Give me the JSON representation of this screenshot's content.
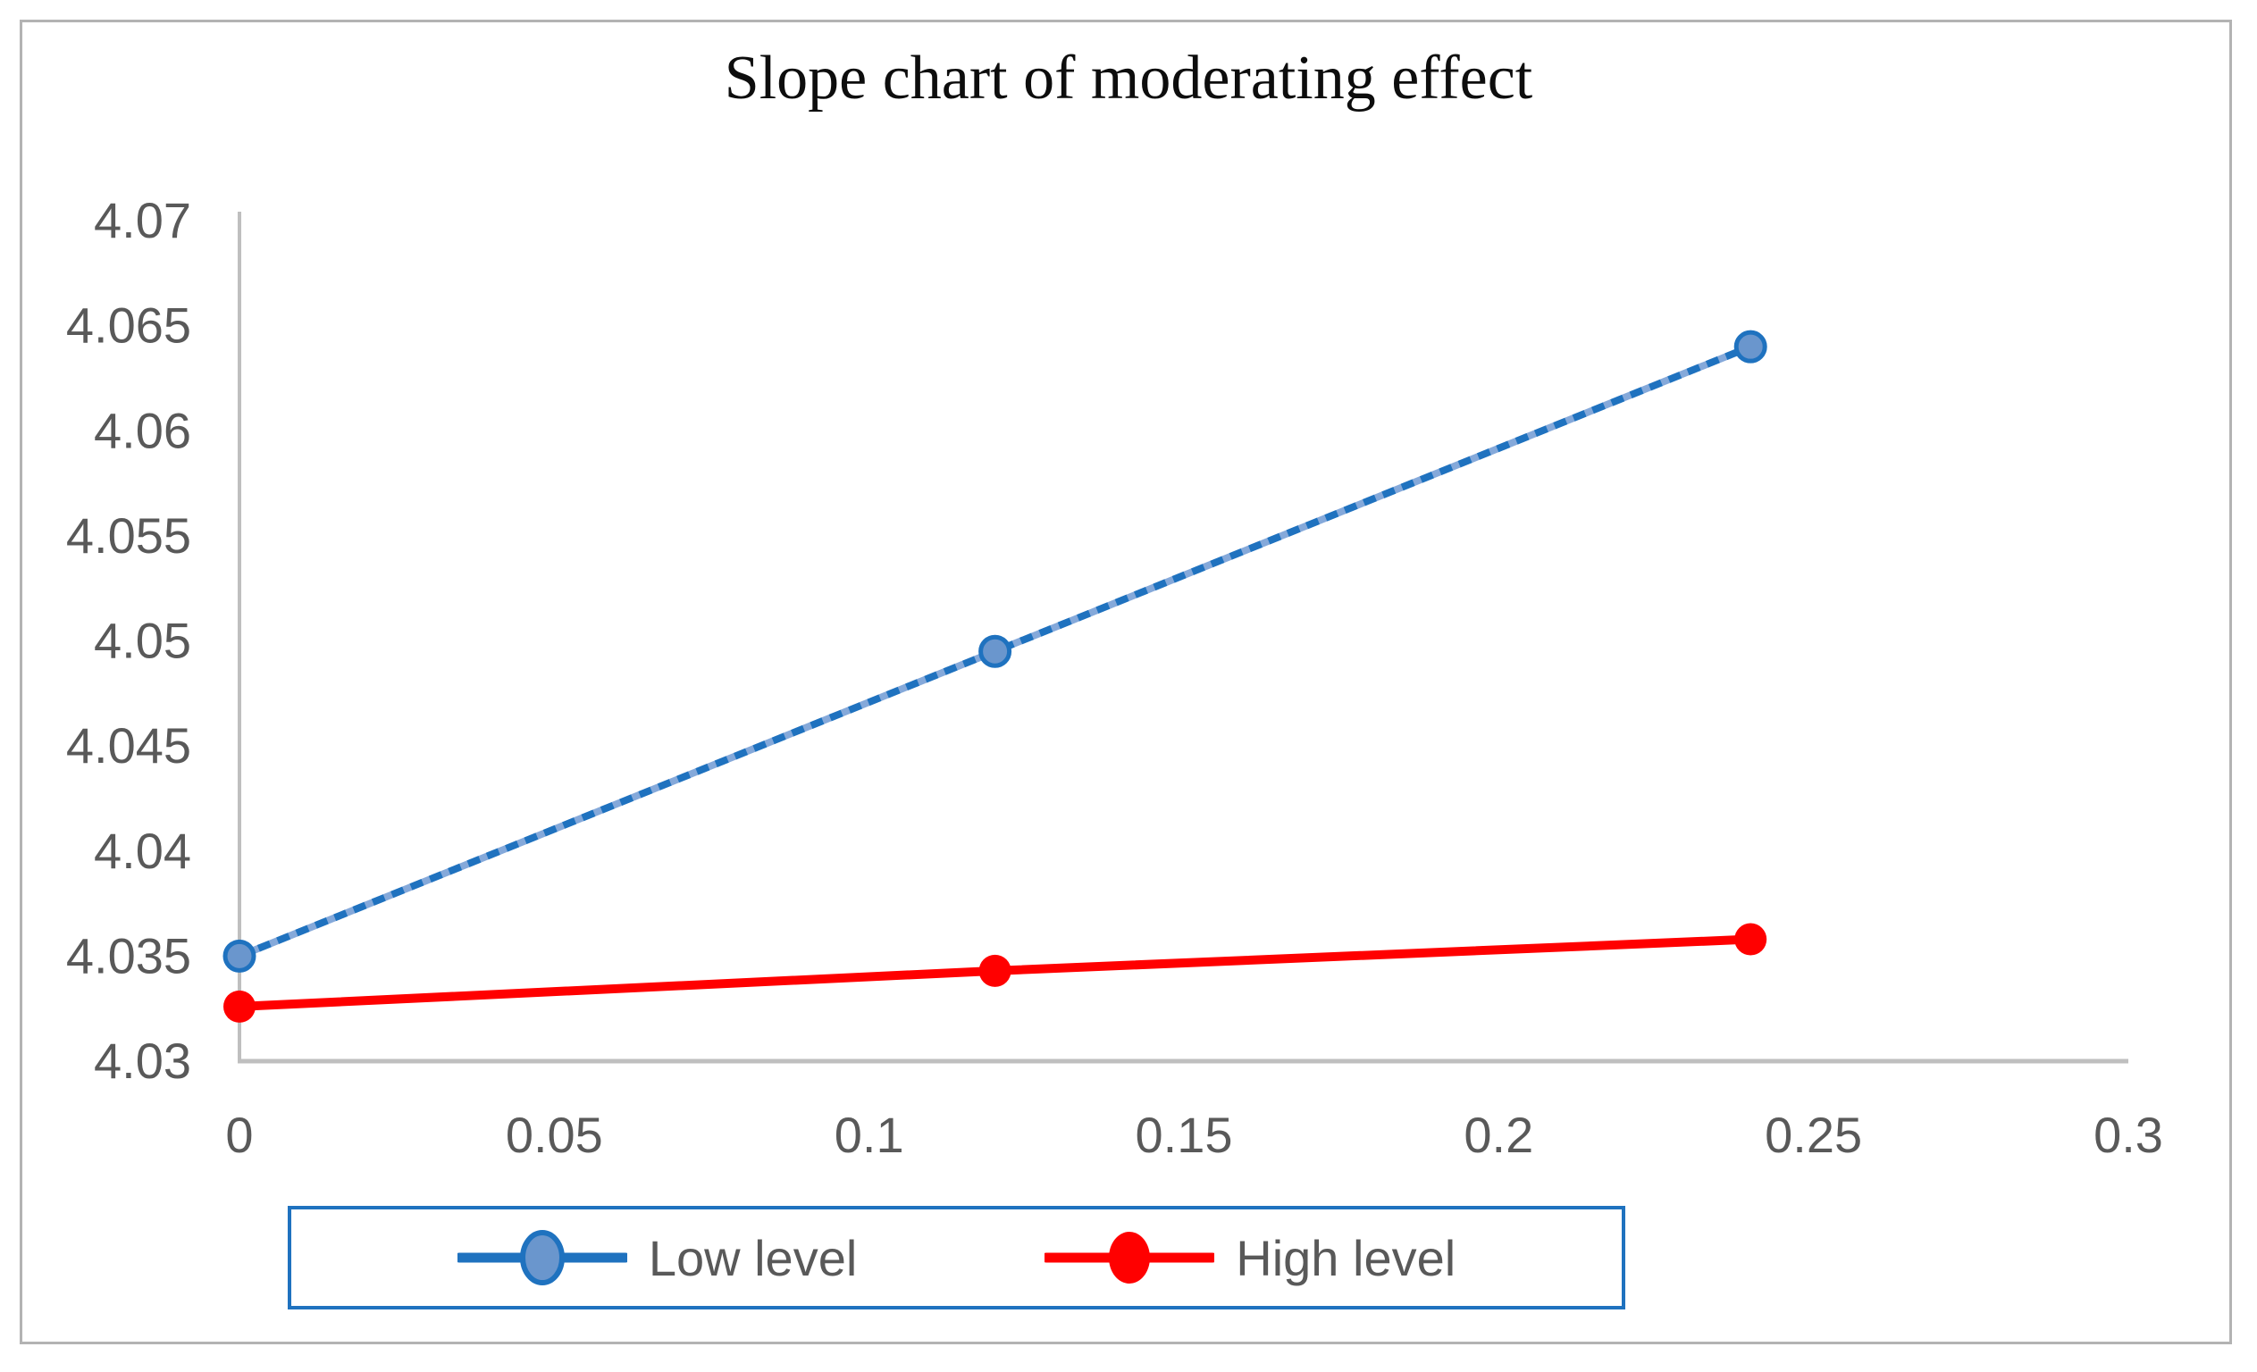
{
  "chart_data": {
    "type": "line",
    "title": "Slope chart of moderating effect",
    "xlabel": "",
    "ylabel": "",
    "x": [
      0,
      0.12,
      0.24
    ],
    "series": [
      {
        "name": "Low level",
        "values": [
          4.035,
          4.0495,
          4.064
        ],
        "color": "#1f72bf",
        "marker_fill": "#6a96cd",
        "dash_gap_color": "#85a9da",
        "line_style": "dashed"
      },
      {
        "name": "High level",
        "values": [
          4.0326,
          4.0343,
          4.0358
        ],
        "color": "#ff0000",
        "marker_fill": "#ff0000",
        "line_style": "solid"
      }
    ],
    "xlim": [
      0,
      0.3
    ],
    "ylim": [
      4.03,
      4.07
    ],
    "x_ticks": [
      "0",
      "0.05",
      "0.1",
      "0.15",
      "0.2",
      "0.25",
      "0.3"
    ],
    "x_tick_values": [
      0,
      0.05,
      0.1,
      0.15,
      0.2,
      0.25,
      0.3
    ],
    "y_ticks": [
      "4.07",
      "4.065",
      "4.06",
      "4.055",
      "4.05",
      "4.045",
      "4.04",
      "4.035",
      "4.03"
    ],
    "y_tick_values": [
      4.07,
      4.065,
      4.06,
      4.055,
      4.05,
      4.045,
      4.04,
      4.035,
      4.03
    ],
    "grid": false,
    "legend_position": "bottom"
  },
  "colors": {
    "axis_line": "#bfbfbf",
    "tick_text": "#595959",
    "legend_border": "#1f72bf",
    "outer_frame": "#b3b3b3",
    "background": "#ffffff"
  }
}
